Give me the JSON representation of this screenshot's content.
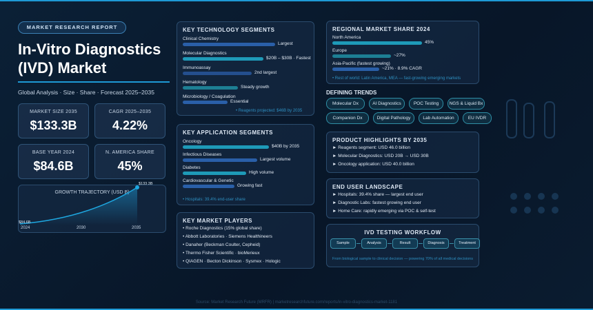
{
  "header": {
    "badge": "MARKET RESEARCH REPORT",
    "title": "In-Vitro Diagnostics (IVD) Market",
    "subtitle": "Global Analysis · Size · Share · Forecast 2025–2035"
  },
  "stats": [
    {
      "label": "MARKET SIZE 2035",
      "value": "$133.3B"
    },
    {
      "label": "CAGR 2025–2035",
      "value": "4.22%"
    },
    {
      "label": "BASE YEAR 2024",
      "value": "$84.6B"
    },
    {
      "label": "N. AMERICA SHARE",
      "value": "45%"
    }
  ],
  "growth": {
    "title": "GROWTH TRAJECTORY (USD B)",
    "start_label": "$84.6B",
    "end_label": "$133.3B",
    "x_labels": [
      "2024",
      "2030",
      "2035"
    ]
  },
  "technology": {
    "title": "KEY TECHNOLOGY SEGMENTS",
    "items": [
      {
        "name": "Clinical Chemistry",
        "note": "Largest"
      },
      {
        "name": "Molecular Diagnostics",
        "note": "$20B – $30B · Fastest"
      },
      {
        "name": "Immunoassay",
        "note": "2nd largest"
      },
      {
        "name": "Hematology",
        "note": "Steady growth"
      },
      {
        "name": "Microbiology / Coagulation",
        "note": "Essential"
      }
    ],
    "footnote": "• Reagents projected: $46B by 2035"
  },
  "applications": {
    "title": "KEY APPLICATION SEGMENTS",
    "items": [
      {
        "name": "Oncology",
        "note": "$40B by 2035"
      },
      {
        "name": "Infectious Diseases",
        "note": "Largest volume"
      },
      {
        "name": "Diabetes",
        "note": "High volume"
      },
      {
        "name": "Cardiovascular & Genetic",
        "note": "Growing fast"
      }
    ],
    "footnote": "• Hospitals: 39.4% end-user share"
  },
  "players": {
    "title": "KEY MARKET PLAYERS",
    "items": [
      "• Roche Diagnostics (15% global share)",
      "• Abbott Laboratories · Siemens Healthineers",
      "• Danaher (Beckman Coulter, Cepheid)",
      "• Thermo Fisher Scientific · bioMerieux",
      "• QIAGEN · Becton Dickinson · Sysmex · Hologic"
    ]
  },
  "regional": {
    "title": "REGIONAL MARKET SHARE 2024",
    "items": [
      {
        "name": "North America",
        "note": "45%"
      },
      {
        "name": "Europe",
        "note": "~27%"
      },
      {
        "name": "Asia-Pacific (fastest growing)",
        "note": "~21% · 8.9% CAGR"
      }
    ],
    "footnote": "• Rest of world: Latin America, MEA — fast-growing emerging markets"
  },
  "trends": {
    "title": "DEFINING TRENDS",
    "tags": [
      "Molecular Dx",
      "AI Diagnostics",
      "POC Testing",
      "NGS & Liquid Bx",
      "Companion Dx",
      "Digital Pathology",
      "Lab Automation",
      "EU IVDR"
    ]
  },
  "highlights": {
    "title": "PRODUCT HIGHLIGHTS BY 2035",
    "items": [
      "► Reagents segment: USD 46.0 billion",
      "► Molecular Diagnostics: USD 20B → USD 30B",
      "► Oncology application: USD 40.0 billion"
    ]
  },
  "end_users": {
    "title": "END USER LANDSCAPE",
    "items": [
      "► Hospitals: 39.4% share — largest end user",
      "► Diagnostic Labs: fastest growing end user",
      "► Home Care: rapidly emerging via POC & self-test"
    ]
  },
  "workflow": {
    "title": "IVD TESTING WORKFLOW",
    "steps": [
      "Sample",
      "Analysis",
      "Result",
      "Diagnosis",
      "Treatment"
    ],
    "caption": "From biological sample to clinical decision — powering 70% of all medical decisions"
  },
  "source": "Source: Market Research Future (MRFR) | marketresearchfuture.com/reports/in-vitro-diagnostics-market-1181"
}
